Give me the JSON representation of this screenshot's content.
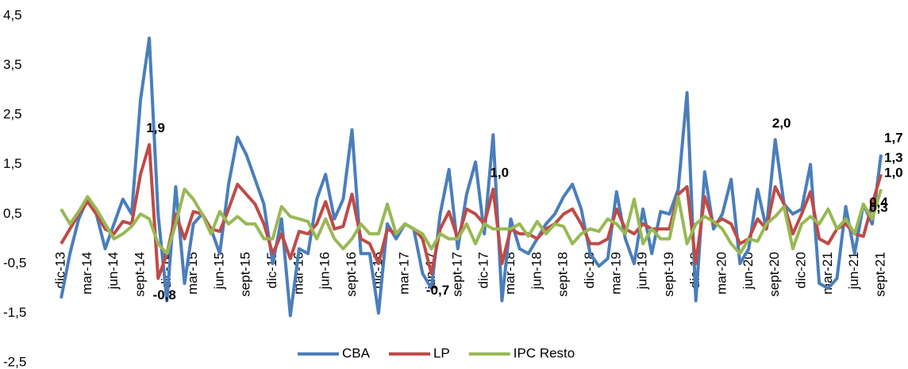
{
  "chart_data": {
    "type": "line",
    "categories": [
      "dic-13",
      null,
      null,
      "mar-14",
      null,
      null,
      "jun-14",
      null,
      null,
      "sept-14",
      null,
      null,
      "dic-14",
      null,
      null,
      "mar-15",
      null,
      null,
      "jun-15",
      null,
      null,
      "sept-15",
      null,
      null,
      "dic-15",
      null,
      null,
      "mar-16",
      null,
      null,
      "jun-16",
      null,
      null,
      "sept-16",
      null,
      null,
      "dic-16",
      null,
      null,
      "mar-17",
      null,
      null,
      "jun-17",
      null,
      null,
      "sept-17",
      null,
      null,
      "dic-17",
      null,
      null,
      "mar-18",
      null,
      null,
      "jun-18",
      null,
      null,
      "sept-18",
      null,
      null,
      "dic-18",
      null,
      null,
      "mar-19",
      null,
      null,
      "jun-19",
      null,
      null,
      "sept-19",
      null,
      null,
      "dic-19",
      null,
      null,
      "mar-20",
      null,
      null,
      "jun-20",
      null,
      null,
      "sept-20",
      null,
      null,
      "dic-20",
      null,
      null,
      "mar-21",
      null,
      null,
      "jun-21",
      null,
      null,
      "sept-21"
    ],
    "series": [
      {
        "name": "CBA",
        "color": "#4a7ebb",
        "values": [
          -1.2,
          -0.3,
          0.4,
          0.8,
          0.5,
          -0.2,
          0.3,
          0.8,
          0.5,
          2.8,
          4.05,
          0.5,
          -1.25,
          1.05,
          -0.9,
          0.3,
          0.5,
          0.2,
          -0.3,
          1.1,
          2.05,
          1.7,
          1.2,
          0.7,
          -0.5,
          0.4,
          -1.55,
          -0.2,
          -0.3,
          0.8,
          1.3,
          0.4,
          0.8,
          2.2,
          -0.3,
          -0.3,
          -1.5,
          0.3,
          0.0,
          0.3,
          0.2,
          -0.7,
          -1.0,
          0.5,
          1.4,
          -0.2,
          0.9,
          1.55,
          0.1,
          2.1,
          -1.25,
          0.4,
          -0.2,
          -0.3,
          0.0,
          0.3,
          0.5,
          0.85,
          1.1,
          0.6,
          -0.3,
          -0.55,
          -0.4,
          0.95,
          0.0,
          -0.5,
          0.6,
          -0.3,
          0.55,
          0.5,
          1.0,
          2.95,
          -1.25,
          1.35,
          0.2,
          0.5,
          1.2,
          -0.5,
          -0.2,
          1.0,
          0.2,
          2.0,
          0.7,
          0.5,
          0.6,
          1.5,
          -0.9,
          -1.0,
          -0.8,
          0.65,
          -0.3,
          0.7,
          0.3,
          1.7
        ],
        "value_labels": [
          null,
          null,
          null,
          null,
          null,
          null,
          null,
          null,
          null,
          null,
          null,
          null,
          null,
          null,
          null,
          null,
          null,
          null,
          null,
          null,
          null,
          null,
          null,
          null,
          null,
          null,
          null,
          null,
          null,
          null,
          null,
          null,
          null,
          null,
          null,
          null,
          null,
          null,
          null,
          null,
          null,
          null,
          null,
          null,
          null,
          null,
          null,
          null,
          null,
          null,
          null,
          null,
          null,
          null,
          null,
          null,
          null,
          null,
          null,
          null,
          null,
          null,
          null,
          null,
          null,
          null,
          null,
          null,
          null,
          null,
          null,
          null,
          null,
          null,
          null,
          null,
          null,
          null,
          null,
          null,
          null,
          "2,0",
          null,
          null,
          null,
          null,
          null,
          null,
          null,
          null,
          null,
          null,
          "0,3",
          "1,7"
        ]
      },
      {
        "name": "LP",
        "color": "#be4b48",
        "values": [
          -0.1,
          0.2,
          0.5,
          0.75,
          0.5,
          0.2,
          0.1,
          0.35,
          0.3,
          1.3,
          1.9,
          -0.8,
          -0.3,
          0.5,
          0.0,
          0.55,
          0.5,
          0.2,
          0.15,
          0.6,
          1.1,
          0.9,
          0.7,
          0.3,
          -0.3,
          0.1,
          -0.4,
          0.15,
          0.1,
          0.3,
          0.75,
          0.2,
          0.25,
          0.9,
          0.0,
          -0.1,
          -0.5,
          0.2,
          0.1,
          0.3,
          0.2,
          0.0,
          -0.7,
          0.2,
          0.55,
          0.0,
          0.6,
          0.5,
          0.3,
          1.0,
          -0.5,
          0.2,
          0.1,
          0.1,
          0.0,
          0.2,
          0.3,
          0.5,
          0.6,
          0.3,
          -0.1,
          -0.1,
          0.0,
          0.6,
          0.2,
          0.1,
          0.3,
          0.2,
          0.2,
          0.2,
          0.9,
          1.05,
          -0.5,
          0.85,
          0.3,
          0.4,
          0.3,
          -0.1,
          0.0,
          0.4,
          0.2,
          1.05,
          0.7,
          0.1,
          0.5,
          0.95,
          0.0,
          -0.1,
          0.2,
          0.3,
          0.1,
          0.05,
          0.7,
          1.3
        ],
        "value_labels": [
          null,
          null,
          null,
          null,
          null,
          null,
          null,
          null,
          null,
          null,
          "1,9",
          "-0,8",
          null,
          null,
          null,
          null,
          null,
          null,
          null,
          null,
          null,
          null,
          null,
          null,
          null,
          null,
          null,
          null,
          null,
          null,
          null,
          null,
          null,
          null,
          null,
          null,
          null,
          null,
          null,
          null,
          null,
          null,
          "-0,7",
          null,
          null,
          null,
          null,
          null,
          null,
          "1,0",
          null,
          null,
          null,
          null,
          null,
          null,
          null,
          null,
          null,
          null,
          null,
          null,
          null,
          null,
          null,
          null,
          null,
          null,
          null,
          null,
          null,
          null,
          null,
          null,
          null,
          null,
          null,
          null,
          null,
          null,
          null,
          null,
          null,
          null,
          null,
          null,
          null,
          null,
          null,
          null,
          null,
          null,
          null,
          "1,3"
        ]
      },
      {
        "name": "IPC Resto",
        "color": "#98b954",
        "values": [
          0.6,
          0.3,
          0.55,
          0.85,
          0.6,
          0.3,
          0.0,
          0.1,
          0.25,
          0.5,
          0.4,
          -0.1,
          -0.3,
          0.3,
          1.0,
          0.8,
          0.5,
          0.1,
          0.55,
          0.3,
          0.45,
          0.3,
          0.3,
          0.0,
          0.0,
          0.65,
          0.45,
          0.4,
          0.35,
          0.0,
          0.4,
          0.0,
          -0.2,
          0.0,
          0.3,
          0.1,
          0.1,
          0.7,
          0.1,
          0.3,
          0.2,
          0.1,
          -0.2,
          0.1,
          0.0,
          0.0,
          0.3,
          -0.1,
          0.3,
          0.2,
          0.2,
          0.2,
          0.3,
          0.05,
          0.35,
          0.1,
          0.3,
          0.25,
          -0.1,
          0.1,
          0.2,
          0.15,
          0.4,
          0.3,
          0.1,
          0.8,
          -0.1,
          0.2,
          0.0,
          0.0,
          0.85,
          -0.1,
          0.3,
          0.45,
          0.35,
          0.2,
          -0.1,
          -0.3,
          0.0,
          -0.05,
          0.3,
          0.45,
          0.65,
          -0.2,
          0.3,
          0.45,
          0.3,
          0.6,
          0.2,
          0.4,
          0.1,
          0.7,
          0.4,
          1.0
        ],
        "value_labels": [
          null,
          null,
          null,
          null,
          null,
          null,
          null,
          null,
          null,
          null,
          null,
          null,
          null,
          null,
          null,
          null,
          null,
          null,
          null,
          null,
          null,
          null,
          null,
          null,
          null,
          null,
          null,
          null,
          null,
          null,
          null,
          null,
          null,
          null,
          null,
          null,
          null,
          null,
          null,
          null,
          null,
          null,
          null,
          null,
          null,
          null,
          null,
          null,
          null,
          null,
          null,
          null,
          null,
          null,
          null,
          null,
          null,
          null,
          null,
          null,
          null,
          null,
          null,
          null,
          null,
          null,
          null,
          null,
          null,
          null,
          null,
          null,
          null,
          null,
          null,
          null,
          null,
          null,
          null,
          null,
          null,
          null,
          null,
          null,
          null,
          null,
          null,
          null,
          null,
          null,
          null,
          null,
          "0,4",
          "1,0"
        ]
      }
    ],
    "ylim": [
      -2.5,
      4.5
    ],
    "yticks": [
      {
        "value": -2.5,
        "label": "-2,5"
      },
      {
        "value": -1.5,
        "label": "-1,5"
      },
      {
        "value": -0.5,
        "label": "-0,5"
      },
      {
        "value": 0.5,
        "label": "0,5"
      },
      {
        "value": 1.5,
        "label": "1,5"
      },
      {
        "value": 2.5,
        "label": "2,5"
      },
      {
        "value": 3.5,
        "label": "3,5"
      },
      {
        "value": 4.5,
        "label": "4,5"
      }
    ]
  }
}
